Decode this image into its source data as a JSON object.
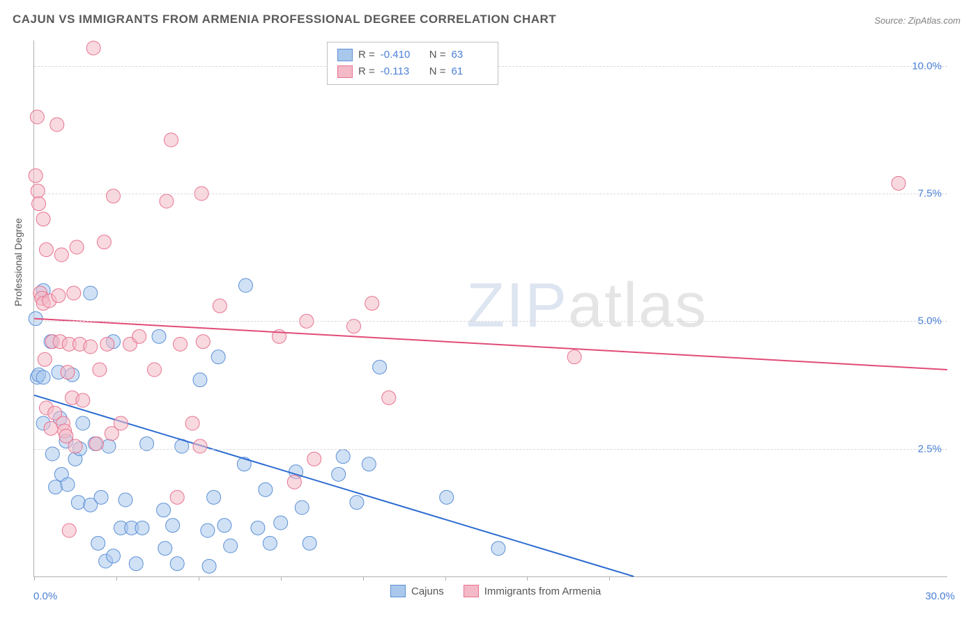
{
  "title": "CAJUN VS IMMIGRANTS FROM ARMENIA PROFESSIONAL DEGREE CORRELATION CHART",
  "source_label": "Source: ZipAtlas.com",
  "ylabel": "Professional Degree",
  "watermark_a": "ZIP",
  "watermark_b": "atlas",
  "chart": {
    "type": "scatter",
    "background_color": "#ffffff",
    "grid_color": "#d8d8d8",
    "axis_color": "#b0b0b0",
    "xlim": [
      0,
      30
    ],
    "ylim": [
      0,
      10.5
    ],
    "xtick_positions": [
      0,
      2.7,
      5.4,
      8.1,
      10.8,
      13.5,
      16.2,
      18.9
    ],
    "xtick_labels": {
      "0": "0.0%",
      "30": "30.0%"
    },
    "ytick_positions": [
      2.5,
      5.0,
      7.5,
      10.0
    ],
    "ytick_labels": [
      "2.5%",
      "5.0%",
      "7.5%",
      "10.0%"
    ],
    "label_color": "#4a7fd6",
    "label_fontsize": 15,
    "marker_radius": 10,
    "marker_opacity": 0.55,
    "line_width": 2,
    "series": [
      {
        "name": "Cajuns",
        "fill": "#a9c8ec",
        "stroke": "#5b8fd6",
        "line_color": "#2b6bd1",
        "R": "-0.410",
        "N": "63",
        "trend": {
          "x1": 0,
          "y1": 3.55,
          "x2": 19.7,
          "y2": 0
        },
        "points": [
          [
            0.05,
            5.05
          ],
          [
            0.1,
            3.9
          ],
          [
            0.15,
            3.95
          ],
          [
            0.3,
            5.6
          ],
          [
            0.3,
            3.9
          ],
          [
            0.3,
            3.0
          ],
          [
            0.55,
            4.6
          ],
          [
            0.6,
            2.4
          ],
          [
            0.7,
            1.75
          ],
          [
            0.8,
            4.0
          ],
          [
            0.85,
            3.1
          ],
          [
            0.9,
            2.0
          ],
          [
            1.05,
            2.65
          ],
          [
            1.1,
            1.8
          ],
          [
            1.25,
            3.95
          ],
          [
            1.35,
            2.3
          ],
          [
            1.45,
            1.45
          ],
          [
            1.5,
            2.5
          ],
          [
            1.6,
            3.0
          ],
          [
            1.85,
            5.55
          ],
          [
            1.85,
            1.4
          ],
          [
            2.0,
            2.6
          ],
          [
            2.1,
            0.65
          ],
          [
            2.2,
            1.55
          ],
          [
            2.35,
            0.3
          ],
          [
            2.45,
            2.55
          ],
          [
            2.6,
            4.6
          ],
          [
            2.6,
            0.4
          ],
          [
            2.85,
            0.95
          ],
          [
            3.0,
            1.5
          ],
          [
            3.2,
            0.95
          ],
          [
            3.35,
            0.25
          ],
          [
            3.55,
            0.95
          ],
          [
            3.7,
            2.6
          ],
          [
            4.1,
            4.7
          ],
          [
            4.25,
            1.3
          ],
          [
            4.3,
            0.55
          ],
          [
            4.55,
            1.0
          ],
          [
            4.7,
            0.25
          ],
          [
            4.85,
            2.55
          ],
          [
            5.45,
            3.85
          ],
          [
            5.7,
            0.9
          ],
          [
            5.75,
            0.2
          ],
          [
            5.9,
            1.55
          ],
          [
            6.05,
            4.3
          ],
          [
            6.25,
            1.0
          ],
          [
            6.45,
            0.6
          ],
          [
            6.9,
            2.2
          ],
          [
            6.95,
            5.7
          ],
          [
            7.35,
            0.95
          ],
          [
            7.6,
            1.7
          ],
          [
            7.75,
            0.65
          ],
          [
            8.1,
            1.05
          ],
          [
            8.6,
            2.05
          ],
          [
            8.8,
            1.35
          ],
          [
            9.05,
            0.65
          ],
          [
            10.0,
            2.0
          ],
          [
            10.15,
            2.35
          ],
          [
            10.6,
            1.45
          ],
          [
            11.0,
            2.2
          ],
          [
            11.35,
            4.1
          ],
          [
            13.55,
            1.55
          ],
          [
            15.25,
            0.55
          ]
        ]
      },
      {
        "name": "Immigrants from Armenia",
        "fill": "#f3b9c6",
        "stroke": "#e8728f",
        "line_color": "#e14b77",
        "R": "-0.113",
        "N": "61",
        "trend": {
          "x1": 0,
          "y1": 5.05,
          "x2": 30,
          "y2": 4.05
        },
        "points": [
          [
            0.05,
            7.85
          ],
          [
            0.1,
            9.0
          ],
          [
            0.12,
            7.55
          ],
          [
            0.15,
            7.3
          ],
          [
            0.2,
            5.55
          ],
          [
            0.25,
            5.45
          ],
          [
            0.3,
            7.0
          ],
          [
            0.3,
            5.35
          ],
          [
            0.35,
            4.25
          ],
          [
            0.4,
            6.4
          ],
          [
            0.4,
            3.3
          ],
          [
            0.5,
            5.4
          ],
          [
            0.55,
            2.9
          ],
          [
            0.6,
            4.6
          ],
          [
            0.68,
            3.2
          ],
          [
            0.75,
            8.85
          ],
          [
            0.8,
            5.5
          ],
          [
            0.85,
            4.6
          ],
          [
            0.9,
            6.3
          ],
          [
            0.95,
            3.0
          ],
          [
            1.0,
            2.85
          ],
          [
            1.05,
            2.75
          ],
          [
            1.1,
            4.0
          ],
          [
            1.15,
            4.55
          ],
          [
            1.15,
            0.9
          ],
          [
            1.25,
            3.5
          ],
          [
            1.3,
            5.55
          ],
          [
            1.35,
            2.55
          ],
          [
            1.4,
            6.45
          ],
          [
            1.5,
            4.55
          ],
          [
            1.6,
            3.45
          ],
          [
            1.85,
            4.5
          ],
          [
            1.95,
            10.35
          ],
          [
            2.05,
            2.6
          ],
          [
            2.15,
            4.05
          ],
          [
            2.3,
            6.55
          ],
          [
            2.4,
            4.55
          ],
          [
            2.55,
            2.8
          ],
          [
            2.6,
            7.45
          ],
          [
            2.85,
            3.0
          ],
          [
            3.15,
            4.55
          ],
          [
            3.45,
            4.7
          ],
          [
            3.95,
            4.05
          ],
          [
            4.35,
            7.35
          ],
          [
            4.5,
            8.55
          ],
          [
            4.7,
            1.55
          ],
          [
            4.8,
            4.55
          ],
          [
            5.2,
            3.0
          ],
          [
            5.45,
            2.55
          ],
          [
            5.5,
            7.5
          ],
          [
            5.55,
            4.6
          ],
          [
            6.1,
            5.3
          ],
          [
            8.05,
            4.7
          ],
          [
            8.55,
            1.85
          ],
          [
            8.95,
            5.0
          ],
          [
            9.2,
            2.3
          ],
          [
            10.5,
            4.9
          ],
          [
            11.1,
            5.35
          ],
          [
            11.65,
            3.5
          ],
          [
            17.75,
            4.3
          ],
          [
            28.4,
            7.7
          ]
        ]
      }
    ]
  },
  "stats_legend": {
    "R_label": "R =",
    "N_label": "N ="
  },
  "bottom_legend": {
    "items": [
      "Cajuns",
      "Immigrants from Armenia"
    ]
  }
}
